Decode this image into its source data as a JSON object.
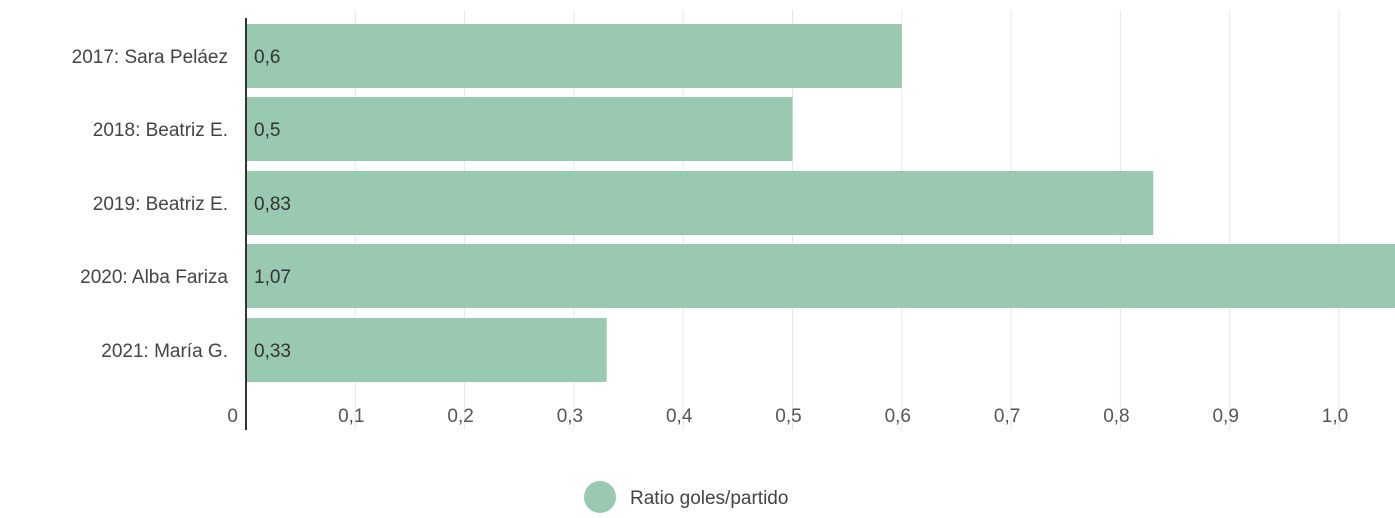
{
  "chart_data": {
    "type": "bar",
    "orientation": "horizontal",
    "categories": [
      "2017: Sara Peláez",
      "2018: Beatriz E.",
      "2019: Beatriz E.",
      "2020: Alba Fariza",
      "2021: María G."
    ],
    "series": [
      {
        "name": "Ratio goles/partido",
        "values": [
          0.6,
          0.5,
          0.83,
          1.07,
          0.33
        ],
        "value_labels": [
          "0,6",
          "0,5",
          "0,83",
          "1,07",
          "0,33"
        ],
        "color": "#99c9b0"
      }
    ],
    "x_ticks": [
      0,
      0.1,
      0.2,
      0.3,
      0.4,
      0.5,
      0.6,
      0.7,
      0.8,
      0.9,
      1.0
    ],
    "x_tick_labels": [
      "0",
      "0,1",
      "0,2",
      "0,3",
      "0,4",
      "0,5",
      "0,6",
      "0,7",
      "0,8",
      "0,9",
      "1,0"
    ],
    "xlim": [
      0,
      1.05
    ],
    "grid": true,
    "legend": "bottom-center",
    "colors": {
      "bar": "#99c9b0",
      "legend_marker": "#99c9b0",
      "grid": "#e6e6e6",
      "axis": "#333333"
    }
  }
}
